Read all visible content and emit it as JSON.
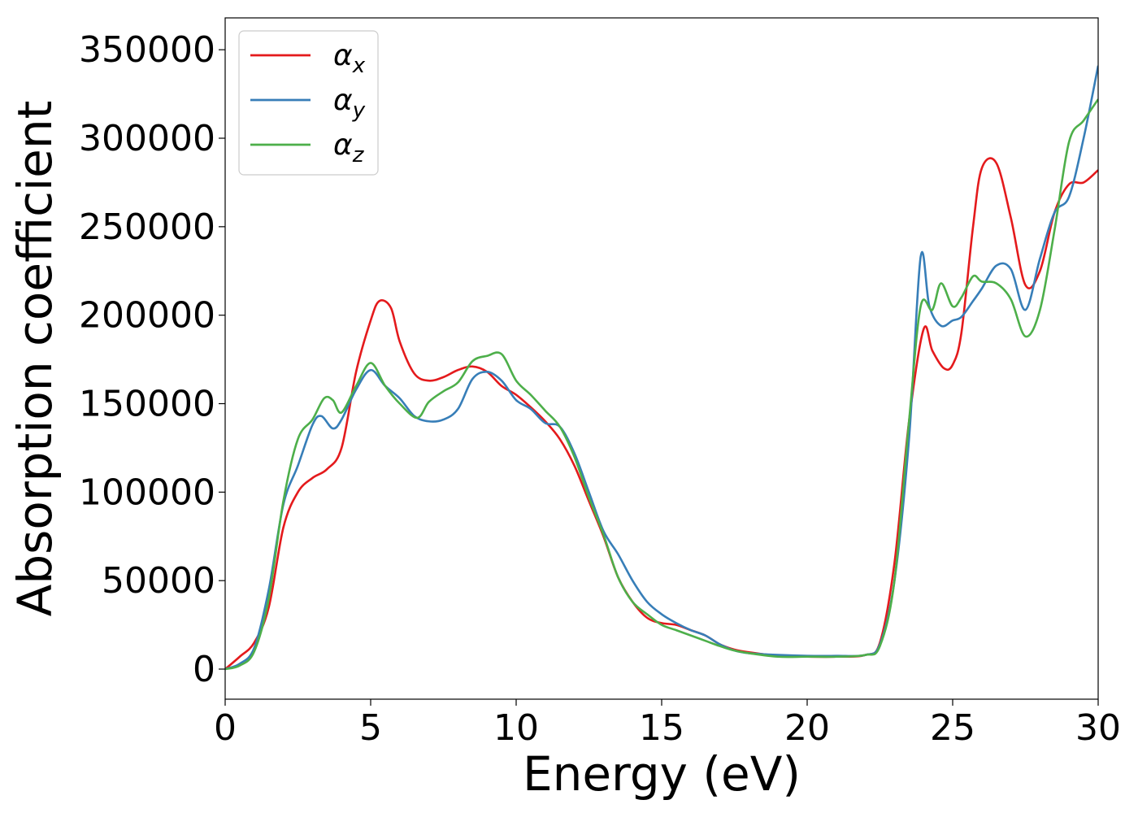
{
  "chart_data": {
    "type": "line",
    "title": "",
    "xlabel": "Energy (eV)",
    "ylabel": "Absorption coefficient",
    "xlim": [
      0,
      30
    ],
    "ylim": [
      -17000,
      368000
    ],
    "xticks": [
      0,
      5,
      10,
      15,
      20,
      25,
      30
    ],
    "xtick_labels": [
      "0",
      "5",
      "10",
      "15",
      "20",
      "25",
      "30"
    ],
    "yticks": [
      0,
      50000,
      100000,
      150000,
      200000,
      250000,
      300000,
      350000
    ],
    "ytick_labels": [
      "0",
      "50000",
      "100000",
      "150000",
      "200000",
      "250000",
      "300000",
      "350000"
    ],
    "grid": false,
    "legend_position": "top-left",
    "series": [
      {
        "name": "αx",
        "label_base": "α",
        "label_sub": "x",
        "color": "#e41a1c",
        "x": [
          0,
          0.5,
          1.0,
          1.5,
          2.0,
          2.5,
          3.0,
          3.5,
          4.0,
          4.5,
          5.0,
          5.3,
          5.7,
          6.0,
          6.5,
          7.0,
          7.5,
          8.0,
          8.5,
          9.0,
          9.5,
          10.0,
          10.5,
          11.0,
          11.5,
          12.0,
          12.5,
          13.0,
          13.5,
          14.0,
          14.5,
          15.0,
          15.5,
          16.0,
          16.5,
          17.0,
          17.5,
          18.0,
          19.0,
          20.0,
          21.0,
          22.0,
          22.5,
          23.0,
          23.5,
          24.0,
          24.3,
          24.7,
          25.0,
          25.3,
          25.7,
          26.0,
          26.5,
          27.0,
          27.5,
          28.0,
          28.5,
          29.0,
          29.5,
          30.0
        ],
        "y": [
          0,
          7000,
          15000,
          35000,
          80000,
          100000,
          108000,
          113000,
          125000,
          168000,
          197000,
          208000,
          204000,
          185000,
          167000,
          163000,
          165000,
          169000,
          171000,
          168000,
          160000,
          155000,
          148000,
          140000,
          130000,
          115000,
          95000,
          75000,
          52000,
          38000,
          29000,
          26000,
          25000,
          22000,
          19000,
          14000,
          11000,
          9500,
          7500,
          7000,
          7000,
          8000,
          15000,
          60000,
          140000,
          192000,
          180000,
          170000,
          172000,
          190000,
          250000,
          283000,
          286000,
          255000,
          217000,
          225000,
          258000,
          274000,
          275000,
          282000
        ]
      },
      {
        "name": "αy",
        "label_base": "α",
        "label_sub": "y",
        "color": "#377eb8",
        "x": [
          0,
          0.5,
          1.0,
          1.5,
          2.0,
          2.5,
          3.0,
          3.3,
          3.7,
          4.0,
          4.5,
          5.0,
          5.5,
          6.0,
          6.5,
          7.0,
          7.5,
          8.0,
          8.5,
          9.0,
          9.5,
          10.0,
          10.5,
          11.0,
          11.5,
          12.0,
          12.5,
          13.0,
          13.5,
          14.0,
          14.5,
          15.0,
          15.5,
          16.0,
          16.5,
          17.0,
          17.5,
          18.0,
          19.0,
          20.0,
          21.0,
          22.0,
          22.5,
          23.0,
          23.5,
          23.9,
          24.2,
          24.6,
          25.0,
          25.3,
          25.7,
          26.0,
          26.5,
          27.0,
          27.5,
          28.0,
          28.5,
          29.0,
          29.5,
          30.0
        ],
        "y": [
          0,
          3000,
          12000,
          45000,
          93000,
          115000,
          138000,
          143000,
          136000,
          141000,
          158000,
          169000,
          160000,
          153000,
          143000,
          140000,
          141000,
          147000,
          164000,
          168000,
          163000,
          152000,
          147000,
          139000,
          137000,
          122000,
          100000,
          78000,
          65000,
          50000,
          38000,
          31000,
          26000,
          22000,
          19000,
          14000,
          10500,
          9000,
          8000,
          7500,
          7500,
          8000,
          14000,
          50000,
          130000,
          233000,
          205000,
          194000,
          197000,
          199000,
          208000,
          215000,
          228000,
          226000,
          203000,
          232000,
          258000,
          267000,
          300000,
          341000
        ]
      },
      {
        "name": "αz",
        "label_base": "α",
        "label_sub": "z",
        "color": "#4daf4a",
        "x": [
          0,
          0.5,
          1.0,
          1.5,
          2.0,
          2.5,
          3.0,
          3.4,
          3.7,
          4.0,
          4.5,
          5.0,
          5.5,
          6.0,
          6.6,
          7.0,
          7.5,
          8.0,
          8.5,
          9.0,
          9.5,
          10.0,
          10.5,
          11.0,
          11.5,
          12.0,
          12.5,
          13.0,
          13.5,
          14.0,
          14.5,
          15.0,
          15.5,
          16.0,
          16.5,
          17.0,
          17.5,
          18.0,
          19.0,
          20.0,
          21.0,
          22.0,
          22.5,
          23.0,
          23.5,
          23.9,
          24.3,
          24.6,
          25.0,
          25.3,
          25.7,
          26.0,
          26.5,
          27.0,
          27.5,
          28.0,
          28.5,
          29.0,
          29.5,
          30.0
        ],
        "y": [
          0,
          2000,
          10000,
          40000,
          95000,
          130000,
          141000,
          153000,
          152000,
          145000,
          160000,
          173000,
          160000,
          150000,
          142000,
          151000,
          157000,
          162000,
          174000,
          177000,
          178000,
          163000,
          155000,
          146000,
          137000,
          120000,
          97000,
          76000,
          52000,
          38000,
          31000,
          25000,
          22000,
          19000,
          16000,
          13000,
          10500,
          9000,
          7000,
          7000,
          7000,
          8000,
          13000,
          50000,
          140000,
          205000,
          203000,
          218000,
          205000,
          210000,
          222000,
          219000,
          218000,
          209000,
          188000,
          203000,
          248000,
          298000,
          310000,
          322000
        ]
      }
    ]
  }
}
